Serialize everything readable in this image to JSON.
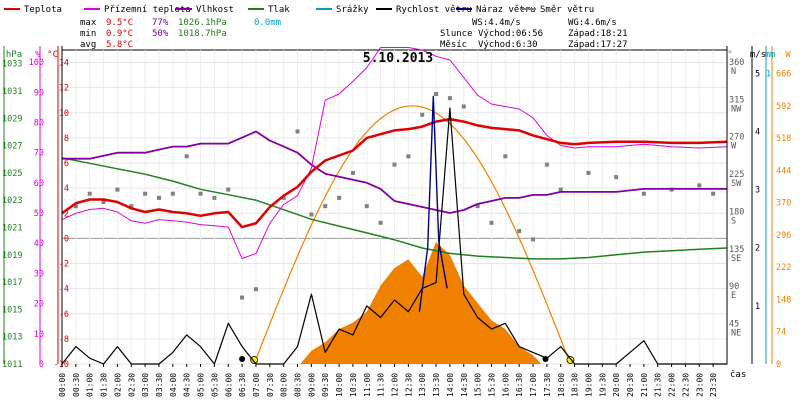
{
  "legend": [
    {
      "label": "Teplota",
      "color": "#e00000"
    },
    {
      "label": "Přízemní teplota",
      "color": "#e000e0"
    },
    {
      "label": "Vlhkost",
      "color": "#8000a0"
    },
    {
      "label": "Tlak",
      "color": "#208020"
    },
    {
      "label": "Srážky",
      "color": "#00a0c0"
    },
    {
      "label": "Rychlost větru",
      "color": "#000000"
    },
    {
      "label": "Náraz větru",
      "color": "#000080"
    },
    {
      "label": "Směr větru",
      "color": "#808080"
    }
  ],
  "stats": {
    "max": {
      "label": "max",
      "temp": "9.5°C",
      "hum": "77%",
      "press": "1026.1hPa",
      "rain": "0.0mm"
    },
    "min": {
      "label": "min",
      "temp": "0.9°C",
      "hum": "50%",
      "press": "1018.7hPa"
    },
    "avg": {
      "label": "avg",
      "temp": "5.8°C"
    },
    "wind": {
      "ws": "WS:4.4m/s",
      "wg": "WG:4.6m/s"
    },
    "sun": {
      "label": "Slunce",
      "rise": "Východ:06:56",
      "set": "Západ:18:21"
    },
    "moon": {
      "label": "Měsíc",
      "rise": "Východ:6:30",
      "set": "Západ:17:27"
    }
  },
  "colors": {
    "temp": "#e00000",
    "ground": "#e000e0",
    "hum": "#8000a0",
    "press": "#208020",
    "rain": "#00a0c0",
    "wind": "#000000",
    "gust": "#000080",
    "dir": "#808080",
    "solar": "#f08000",
    "sun_marker": "#f0f000",
    "moon_marker": "#000000"
  },
  "chart_data": {
    "type": "line",
    "title": "5.10.2013",
    "xlabel": "čas",
    "x_range": [
      0,
      24
    ],
    "x_ticks": [
      "00:00",
      "00:30",
      "01:00",
      "01:30",
      "02:00",
      "02:30",
      "03:00",
      "03:30",
      "04:00",
      "04:30",
      "05:00",
      "05:30",
      "06:00",
      "06:30",
      "07:00",
      "07:30",
      "08:00",
      "08:30",
      "09:00",
      "09:30",
      "10:00",
      "10:30",
      "11:00",
      "11:30",
      "12:00",
      "12:30",
      "13:00",
      "13:30",
      "14:00",
      "14:30",
      "15:00",
      "15:30",
      "16:00",
      "16:30",
      "17:00",
      "17:30",
      "18:00",
      "18:30",
      "19:00",
      "19:30",
      "20:00",
      "20:30",
      "21:00",
      "21:30",
      "22:00",
      "22:30",
      "23:00",
      "23:30"
    ],
    "axes": {
      "hpa": {
        "label": "hPa",
        "range": [
          1011,
          1034
        ],
        "ticks": [
          1011,
          1013,
          1015,
          1017,
          1019,
          1021,
          1023,
          1025,
          1027,
          1029,
          1031,
          1033
        ]
      },
      "pct": {
        "label": "%",
        "range": [
          0,
          104
        ],
        "ticks": [
          0,
          10,
          20,
          30,
          40,
          50,
          60,
          70,
          80,
          90,
          100
        ]
      },
      "temp": {
        "label": "°C",
        "range": [
          -10,
          15
        ],
        "ticks": [
          -10,
          -8,
          -6,
          -4,
          -2,
          0,
          2,
          4,
          6,
          8,
          10,
          12,
          14
        ]
      },
      "dir": {
        "label": "°",
        "range": [
          0,
          378
        ],
        "ticks": [
          "360\nN",
          "315\nNW",
          "270\nW",
          "225\nSW",
          "180\nS",
          "135\nSE",
          "90\nE",
          "45\nNE"
        ]
      },
      "wind": {
        "label": "m/s",
        "range": [
          0,
          5.4
        ],
        "ticks": [
          5,
          4,
          3,
          2,
          1
        ]
      },
      "rain": {
        "label": "mm",
        "range": [
          0,
          1.08
        ],
        "ticks": [
          1
        ]
      },
      "solar": {
        "label": "W",
        "range": [
          0,
          720
        ],
        "ticks": [
          666,
          592,
          518,
          444,
          370,
          296,
          222,
          148,
          74,
          0
        ]
      }
    },
    "series": [
      {
        "name": "Teplota",
        "axis": "temp",
        "x": [
          0,
          0.5,
          1,
          1.5,
          2,
          2.5,
          3,
          3.5,
          4,
          4.5,
          5,
          5.5,
          6,
          6.5,
          7,
          7.5,
          8,
          8.5,
          9,
          9.5,
          10,
          10.5,
          11,
          11.5,
          12,
          12.5,
          13,
          13.5,
          14,
          14.5,
          15,
          15.5,
          16,
          16.5,
          17,
          17.5,
          18,
          18.5,
          19,
          20,
          21,
          22,
          23,
          24
        ],
        "y": [
          2,
          2.8,
          3.1,
          3.1,
          2.9,
          2.4,
          2.1,
          2.3,
          2.1,
          2,
          1.8,
          2,
          2.1,
          0.9,
          1.2,
          2.5,
          3.4,
          4.1,
          5.3,
          6.2,
          6.6,
          7,
          8,
          8.3,
          8.6,
          8.7,
          8.9,
          9.3,
          9.5,
          9.3,
          9,
          8.8,
          8.7,
          8.6,
          8.2,
          7.9,
          7.6,
          7.5,
          7.6,
          7.7,
          7.7,
          7.6,
          7.6,
          7.7
        ]
      },
      {
        "name": "Přízemní teplota",
        "axis": "temp",
        "x": [
          0,
          0.5,
          1,
          1.5,
          2,
          2.5,
          3,
          3.5,
          4,
          4.5,
          5,
          5.5,
          6,
          6.5,
          7,
          7.5,
          8,
          8.5,
          9,
          9.5,
          10,
          10.5,
          11,
          11.5,
          12,
          12.5,
          13,
          13.5,
          14,
          14.5,
          15,
          15.5,
          16,
          16.5,
          17,
          17.5,
          18,
          18.5,
          19,
          20,
          21,
          22,
          23,
          24
        ],
        "y": [
          1.5,
          2,
          2.3,
          2.4,
          2.1,
          1.4,
          1.2,
          1.5,
          1.4,
          1.3,
          1.1,
          1,
          0.9,
          -1.6,
          -1.2,
          1.2,
          2.7,
          3.4,
          5.6,
          11,
          11.5,
          12.5,
          13.6,
          15.2,
          15.2,
          15.2,
          15,
          14.5,
          14.2,
          12.8,
          11.4,
          10.7,
          10.5,
          10.3,
          9.6,
          8.2,
          7.4,
          7.2,
          7.3,
          7.3,
          7.5,
          7.3,
          7.2,
          7.3
        ]
      },
      {
        "name": "Vlhkost",
        "axis": "pct",
        "x": [
          0,
          0.5,
          1,
          1.5,
          2,
          2.5,
          3,
          3.5,
          4,
          4.5,
          5,
          5.5,
          6,
          6.5,
          7,
          7.5,
          8,
          8.5,
          9,
          9.5,
          10,
          10.5,
          11,
          11.5,
          12,
          12.5,
          13,
          13.5,
          14,
          14.5,
          15,
          15.5,
          16,
          16.5,
          17,
          17.5,
          18,
          18.5,
          19,
          20,
          21,
          22,
          23,
          24
        ],
        "y": [
          68,
          68,
          68,
          69,
          70,
          70,
          70,
          71,
          72,
          72,
          73,
          73,
          73,
          75,
          77,
          74,
          72,
          70,
          66,
          63,
          62,
          61,
          60,
          58,
          54,
          53,
          52,
          51,
          50,
          51,
          53,
          54,
          55,
          55,
          56,
          56,
          57,
          57,
          57,
          57,
          58,
          58,
          58,
          58
        ]
      },
      {
        "name": "Tlak",
        "axis": "hpa",
        "x": [
          0,
          1,
          2,
          3,
          4,
          5,
          6,
          7,
          8,
          9,
          10,
          11,
          12,
          13,
          14,
          15,
          16,
          17,
          18,
          19,
          20,
          21,
          22,
          23,
          24
        ],
        "y": [
          1026.1,
          1025.7,
          1025.3,
          1024.9,
          1024.4,
          1023.8,
          1023.4,
          1023,
          1022.3,
          1021.6,
          1021.1,
          1020.6,
          1020.1,
          1019.5,
          1019.1,
          1018.9,
          1018.8,
          1018.7,
          1018.7,
          1018.8,
          1019,
          1019.2,
          1019.3,
          1019.4,
          1019.5
        ]
      },
      {
        "name": "Rychlost větru",
        "axis": "wind",
        "x": [
          0,
          0.5,
          1,
          1.5,
          2,
          2.5,
          3,
          3.5,
          4,
          4.5,
          5,
          5.5,
          6,
          6.5,
          7,
          7.5,
          8,
          8.5,
          9,
          9.5,
          10,
          10.5,
          11,
          11.5,
          12,
          12.5,
          13,
          13.5,
          14,
          14.5,
          15,
          15.5,
          16,
          16.5,
          17,
          17.5,
          18,
          18.5,
          19,
          19.5,
          20,
          20.5,
          21,
          21.5,
          22,
          22.5,
          23,
          23.5,
          24
        ],
        "y": [
          0,
          0.3,
          0.1,
          0,
          0.3,
          0,
          0,
          0,
          0.2,
          0.5,
          0.3,
          0,
          0.7,
          0.3,
          0,
          0,
          0,
          0.3,
          1.2,
          0.2,
          0.6,
          0.5,
          1,
          0.8,
          1.1,
          0.9,
          1.3,
          1.4,
          4.4,
          1.2,
          0.8,
          0.6,
          0.7,
          0.3,
          0.2,
          0.1,
          0.3,
          0,
          0,
          0,
          0,
          0.2,
          0.4,
          0,
          0,
          0,
          0,
          0,
          0
        ]
      },
      {
        "name": "Náraz větru",
        "axis": "wind",
        "x": [
          12.9,
          13.2,
          13.4,
          13.6,
          13.9
        ],
        "y": [
          0.9,
          2,
          4.6,
          2.1,
          1.3
        ]
      },
      {
        "name": "Směr větru",
        "axis": "dir",
        "x": [
          0.5,
          1,
          1.5,
          2,
          2.5,
          3,
          3.5,
          4,
          4.5,
          5,
          5.5,
          6,
          6.5,
          7,
          8,
          8.5,
          9,
          9.5,
          10,
          10.5,
          11,
          11.5,
          12,
          12.5,
          13,
          13.5,
          14,
          14.5,
          15,
          15.5,
          16,
          16.5,
          17,
          17.5,
          18,
          19,
          20,
          21,
          22,
          23,
          23.5
        ],
        "y": [
          190,
          205,
          195,
          210,
          190,
          205,
          200,
          205,
          250,
          205,
          200,
          210,
          80,
          90,
          200,
          280,
          180,
          190,
          200,
          230,
          190,
          170,
          240,
          250,
          300,
          325,
          320,
          310,
          190,
          170,
          250,
          160,
          150,
          240,
          210,
          230,
          225,
          205,
          210,
          215,
          205
        ]
      },
      {
        "name": "solar",
        "axis": "solar",
        "x": [
          8.6,
          9,
          9.5,
          10,
          10.5,
          11,
          11.5,
          12,
          12.5,
          13,
          13.5,
          14,
          14.5,
          15,
          15.5,
          16,
          16.5,
          17,
          17.3
        ],
        "y": [
          0,
          30,
          50,
          80,
          95,
          120,
          180,
          220,
          240,
          200,
          280,
          250,
          180,
          140,
          100,
          80,
          40,
          20,
          0
        ]
      }
    ],
    "grid": true
  }
}
